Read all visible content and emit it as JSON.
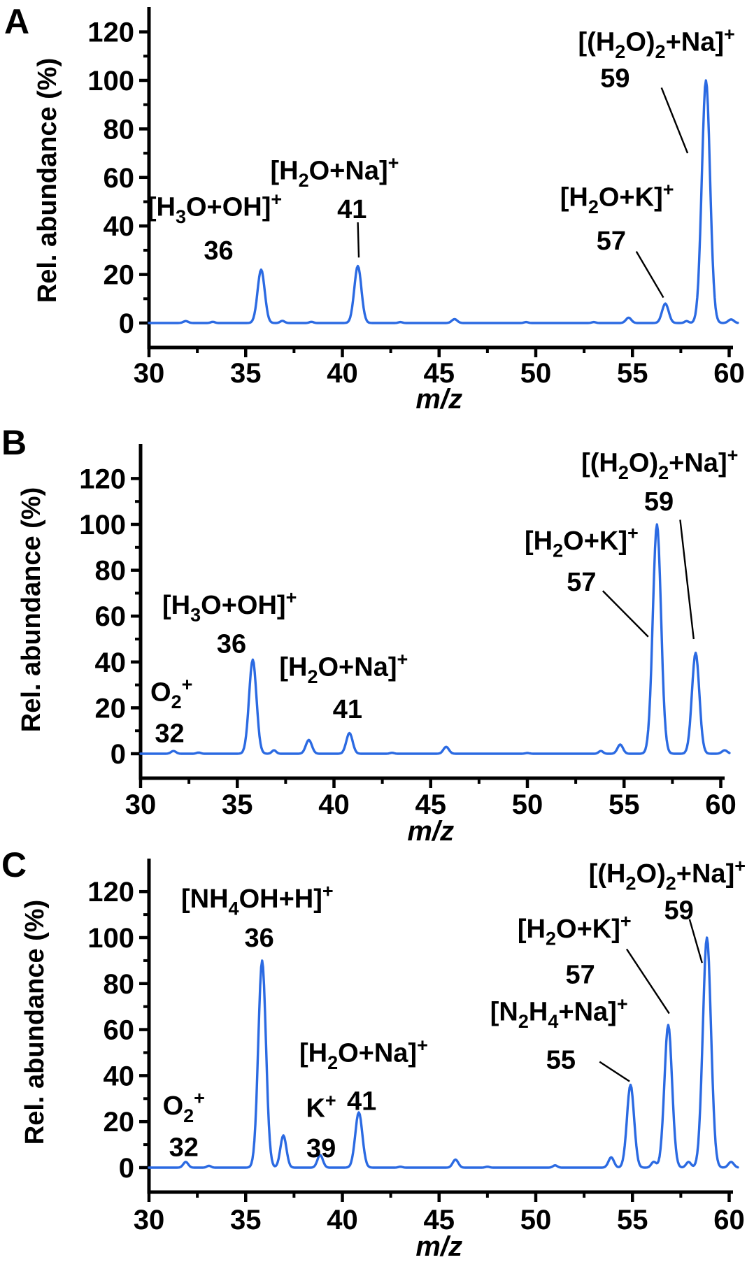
{
  "figure_title": "ESI mass spectra panels",
  "colors": {
    "trace": "#2b6ae2",
    "axis": "#000000",
    "text": "#000000",
    "background": "#ffffff"
  },
  "chart_data": [
    {
      "id": "A",
      "panel_label": "A",
      "type": "line",
      "xlabel": "m/z",
      "ylabel": "Rel. abundance (%)",
      "xlim": [
        30,
        60
      ],
      "ylim": [
        -10,
        130
      ],
      "x_ticks": [
        30,
        35,
        40,
        45,
        50,
        55,
        60
      ],
      "x_minor_ticks": [
        32.5,
        37.5,
        42.5,
        47.5,
        52.5,
        57.5
      ],
      "y_ticks": [
        0,
        20,
        40,
        60,
        80,
        100,
        120
      ],
      "y_minor_ticks": [
        10,
        30,
        50,
        70,
        90,
        110
      ],
      "grid": false,
      "labeled_peaks": [
        {
          "mz": 36,
          "rel_abundance": 22,
          "species": "[H_3O+OH]^+"
        },
        {
          "mz": 41,
          "rel_abundance": 24,
          "species": "[H_2O+Na]^+"
        },
        {
          "mz": 57,
          "rel_abundance": 8,
          "species": "[H_2O+K]^+"
        },
        {
          "mz": 59,
          "rel_abundance": 100,
          "species": "[(H_2O)_2+Na]^+"
        }
      ],
      "trace_peaks": [
        [
          31.9,
          0.8,
          0.18
        ],
        [
          33.3,
          0.5,
          0.15
        ],
        [
          35.8,
          22,
          0.26
        ],
        [
          36.9,
          0.9,
          0.16
        ],
        [
          38.4,
          0.5,
          0.15
        ],
        [
          40.8,
          23.5,
          0.26
        ],
        [
          43.0,
          0.4,
          0.15
        ],
        [
          45.8,
          1.6,
          0.2
        ],
        [
          49.5,
          0.4,
          0.15
        ],
        [
          53.0,
          0.4,
          0.15
        ],
        [
          54.8,
          2.2,
          0.2
        ],
        [
          56.7,
          8,
          0.24
        ],
        [
          57.8,
          0.8,
          0.15
        ],
        [
          58.8,
          100,
          0.3
        ],
        [
          60.1,
          1.5,
          0.2
        ]
      ],
      "annotations": [
        {
          "text": "[H_3O+OH]^+",
          "mz": 33.4,
          "pct": 48
        },
        {
          "text": "36",
          "mz": 33.6,
          "pct": 30
        },
        {
          "text": "[H_2O+Na]^+",
          "mz": 39.6,
          "pct": 63
        },
        {
          "text": "41",
          "mz": 40.5,
          "pct": 47
        },
        {
          "text": "[H_2O+K]^+",
          "mz": 54.2,
          "pct": 52
        },
        {
          "text": "57",
          "mz": 53.9,
          "pct": 34
        },
        {
          "text": "[(H_2O)_2+Na]^+",
          "mz": 60.3,
          "pct": 116,
          "anchor": "end"
        },
        {
          "text": "59",
          "mz": 54.1,
          "pct": 101
        }
      ],
      "leader_lines": [
        [
          40.8,
          41.5,
          40.85,
          27
        ],
        [
          55.2,
          29.5,
          56.6,
          10.5
        ],
        [
          56.5,
          97.0,
          57.85,
          70
        ]
      ]
    },
    {
      "id": "B",
      "panel_label": "B",
      "type": "line",
      "xlabel": "m/z",
      "ylabel": "Rel. abundance (%)",
      "xlim": [
        30,
        60
      ],
      "ylim": [
        -10,
        130
      ],
      "x_ticks": [
        30,
        35,
        40,
        45,
        50,
        55,
        60
      ],
      "x_minor_ticks": [
        32.5,
        37.5,
        42.5,
        47.5,
        52.5,
        57.5
      ],
      "y_ticks": [
        0,
        20,
        40,
        60,
        80,
        100,
        120
      ],
      "y_minor_ticks": [
        10,
        30,
        50,
        70,
        90,
        110
      ],
      "grid": false,
      "labeled_peaks": [
        {
          "mz": 32,
          "rel_abundance": 1,
          "species": "O_2^+"
        },
        {
          "mz": 36,
          "rel_abundance": 41,
          "species": "[H_3O+OH]^+"
        },
        {
          "mz": 41,
          "rel_abundance": 9,
          "species": "[H_2O+Na]^+"
        },
        {
          "mz": 57,
          "rel_abundance": 100,
          "species": "[H_2O+K]^+"
        },
        {
          "mz": 59,
          "rel_abundance": 44,
          "species": "[(H_2O)_2+Na]^+"
        }
      ],
      "trace_peaks": [
        [
          31.7,
          1.2,
          0.18
        ],
        [
          33.0,
          0.5,
          0.15
        ],
        [
          35.8,
          41,
          0.27
        ],
        [
          36.9,
          1.5,
          0.16
        ],
        [
          38.7,
          6,
          0.22
        ],
        [
          40.8,
          9,
          0.23
        ],
        [
          43.0,
          0.4,
          0.15
        ],
        [
          45.8,
          3,
          0.2
        ],
        [
          50.0,
          0.3,
          0.15
        ],
        [
          53.8,
          1.2,
          0.16
        ],
        [
          54.8,
          4,
          0.2
        ],
        [
          56.7,
          100,
          0.3
        ],
        [
          58.7,
          44,
          0.27
        ],
        [
          60.2,
          1.5,
          0.2
        ]
      ],
      "annotations": [
        {
          "text": "O_2^+",
          "mz": 31.6,
          "pct": 27
        },
        {
          "text": "32",
          "mz": 31.5,
          "pct": 9
        },
        {
          "text": "[H_3O+OH]^+",
          "mz": 34.6,
          "pct": 65
        },
        {
          "text": "36",
          "mz": 34.7,
          "pct": 48
        },
        {
          "text": "[H_2O+Na]^+",
          "mz": 40.5,
          "pct": 38
        },
        {
          "text": "41",
          "mz": 40.7,
          "pct": 19.5
        },
        {
          "text": "[H_2O+K]^+",
          "mz": 52.8,
          "pct": 93
        },
        {
          "text": "57",
          "mz": 52.8,
          "pct": 75
        },
        {
          "text": "[(H_2O)_2+Na]^+",
          "mz": 60.9,
          "pct": 127,
          "anchor": "end"
        },
        {
          "text": "59",
          "mz": 56.8,
          "pct": 110
        }
      ],
      "leader_lines": [
        [
          53.9,
          71,
          56.25,
          51
        ],
        [
          57.9,
          102,
          58.6,
          50
        ]
      ]
    },
    {
      "id": "C",
      "panel_label": "C",
      "type": "line",
      "xlabel": "m/z",
      "ylabel": "Rel. abundance (%)",
      "xlim": [
        30,
        60
      ],
      "ylim": [
        -10,
        130
      ],
      "x_ticks": [
        30,
        35,
        40,
        45,
        50,
        55,
        60
      ],
      "x_minor_ticks": [
        32.5,
        37.5,
        42.5,
        47.5,
        52.5,
        57.5
      ],
      "y_ticks": [
        0,
        20,
        40,
        60,
        80,
        100,
        120
      ],
      "y_minor_ticks": [
        10,
        30,
        50,
        70,
        90,
        110
      ],
      "grid": false,
      "labeled_peaks": [
        {
          "mz": 32,
          "rel_abundance": 2.5,
          "species": "O_2^+"
        },
        {
          "mz": 36,
          "rel_abundance": 90,
          "species": "[NH_4OH+H]^+"
        },
        {
          "mz": 39,
          "rel_abundance": 5.5,
          "species": "K^+"
        },
        {
          "mz": 41,
          "rel_abundance": 24,
          "species": "[H_2O+Na]^+"
        },
        {
          "mz": 55,
          "rel_abundance": 36,
          "species": "[N_2H_4+Na]^+"
        },
        {
          "mz": 57,
          "rel_abundance": 62,
          "species": "[H_2O+K]^+"
        },
        {
          "mz": 59,
          "rel_abundance": 100,
          "species": "[(H_2O)_2+Na]^+"
        }
      ],
      "trace_peaks": [
        [
          31.9,
          2.5,
          0.18
        ],
        [
          33.1,
          0.8,
          0.15
        ],
        [
          35.85,
          90,
          0.28
        ],
        [
          36.95,
          14,
          0.22
        ],
        [
          38.85,
          5.5,
          0.2
        ],
        [
          40.85,
          24,
          0.26
        ],
        [
          43.0,
          0.4,
          0.15
        ],
        [
          45.85,
          3.5,
          0.2
        ],
        [
          47.5,
          0.4,
          0.15
        ],
        [
          51.0,
          1,
          0.16
        ],
        [
          53.9,
          4.5,
          0.2
        ],
        [
          54.9,
          36,
          0.26
        ],
        [
          56.1,
          2.5,
          0.18
        ],
        [
          56.85,
          62,
          0.28
        ],
        [
          57.9,
          2.5,
          0.18
        ],
        [
          58.85,
          100,
          0.3
        ],
        [
          60.1,
          2.5,
          0.2
        ]
      ],
      "annotations": [
        {
          "text": "O_2^+",
          "mz": 31.8,
          "pct": 27
        },
        {
          "text": "32",
          "mz": 31.8,
          "pct": 9
        },
        {
          "text": "[NH_4OH+H]^+",
          "mz": 35.6,
          "pct": 117
        },
        {
          "text": "36",
          "mz": 35.7,
          "pct": 100
        },
        {
          "text": "K^+",
          "mz": 38.9,
          "pct": 26
        },
        {
          "text": "39",
          "mz": 38.9,
          "pct": 8.5
        },
        {
          "text": "[H_2O+Na]^+",
          "mz": 41.1,
          "pct": 50
        },
        {
          "text": "41",
          "mz": 41.0,
          "pct": 29
        },
        {
          "text": "[N_2H_4+Na]^+",
          "mz": 51.2,
          "pct": 68
        },
        {
          "text": "55",
          "mz": 51.3,
          "pct": 47
        },
        {
          "text": "[H_2O+K]^+",
          "mz": 52.0,
          "pct": 104
        },
        {
          "text": "57",
          "mz": 52.3,
          "pct": 84
        },
        {
          "text": "[(H_2O)_2+Na]^+",
          "mz": 60.85,
          "pct": 128,
          "anchor": "end"
        },
        {
          "text": "59",
          "mz": 57.4,
          "pct": 112
        }
      ],
      "leader_lines": [
        [
          53.3,
          46,
          54.85,
          37.5
        ],
        [
          54.7,
          95,
          56.9,
          67
        ],
        [
          57.95,
          108,
          58.6,
          89
        ]
      ]
    }
  ]
}
